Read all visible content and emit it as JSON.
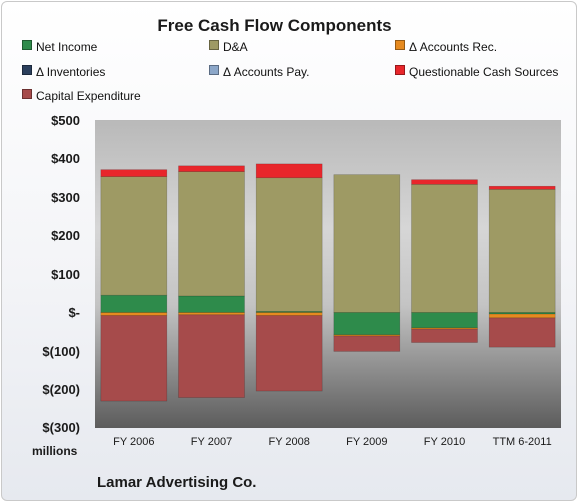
{
  "chart_data": {
    "type": "bar",
    "stacked": true,
    "title": "Free Cash Flow Components",
    "categories": [
      "FY 2006",
      "FY 2007",
      "FY 2008",
      "FY 2009",
      "FY 2010",
      "TTM 6-2011"
    ],
    "series": [
      {
        "name": "Net Income",
        "color": "#2e8b4b",
        "values": [
          45,
          43,
          3,
          -58,
          -40,
          -4
        ]
      },
      {
        "name": "D&A",
        "color": "#9e9a64",
        "values": [
          308,
          323,
          347,
          358,
          333,
          320
        ]
      },
      {
        "name": "Δ Accounts Rec.",
        "color": "#e68a1f",
        "values": [
          -8,
          -6,
          -8,
          -3,
          -3,
          -10
        ]
      },
      {
        "name": "Δ Inventories",
        "color": "#2b3f5c",
        "values": [
          0,
          0,
          0,
          0,
          0,
          0
        ]
      },
      {
        "name": "Δ Accounts Pay.",
        "color": "#8ca7c9",
        "values": [
          0,
          0,
          0,
          0,
          0,
          0
        ]
      },
      {
        "name": "Questionable Cash Sources",
        "color": "#e8262b",
        "values": [
          18,
          15,
          36,
          0,
          12,
          8
        ]
      },
      {
        "name": "Capital Expenditure",
        "color": "#a64b4b",
        "values": [
          -222,
          -215,
          -196,
          -40,
          -35,
          -76
        ]
      }
    ],
    "ylim": [
      -300,
      500
    ],
    "yticks": [
      500,
      400,
      300,
      200,
      100,
      0,
      -100,
      -200,
      -300
    ],
    "ytick_labels": [
      "$500",
      "$400",
      "$300",
      "$200",
      "$100",
      "$-",
      "$(100)",
      "$(200)",
      "$(300)"
    ],
    "units_label": "millions",
    "footer": "Lamar Advertising Co.",
    "grid": false,
    "legend_position": "top"
  }
}
